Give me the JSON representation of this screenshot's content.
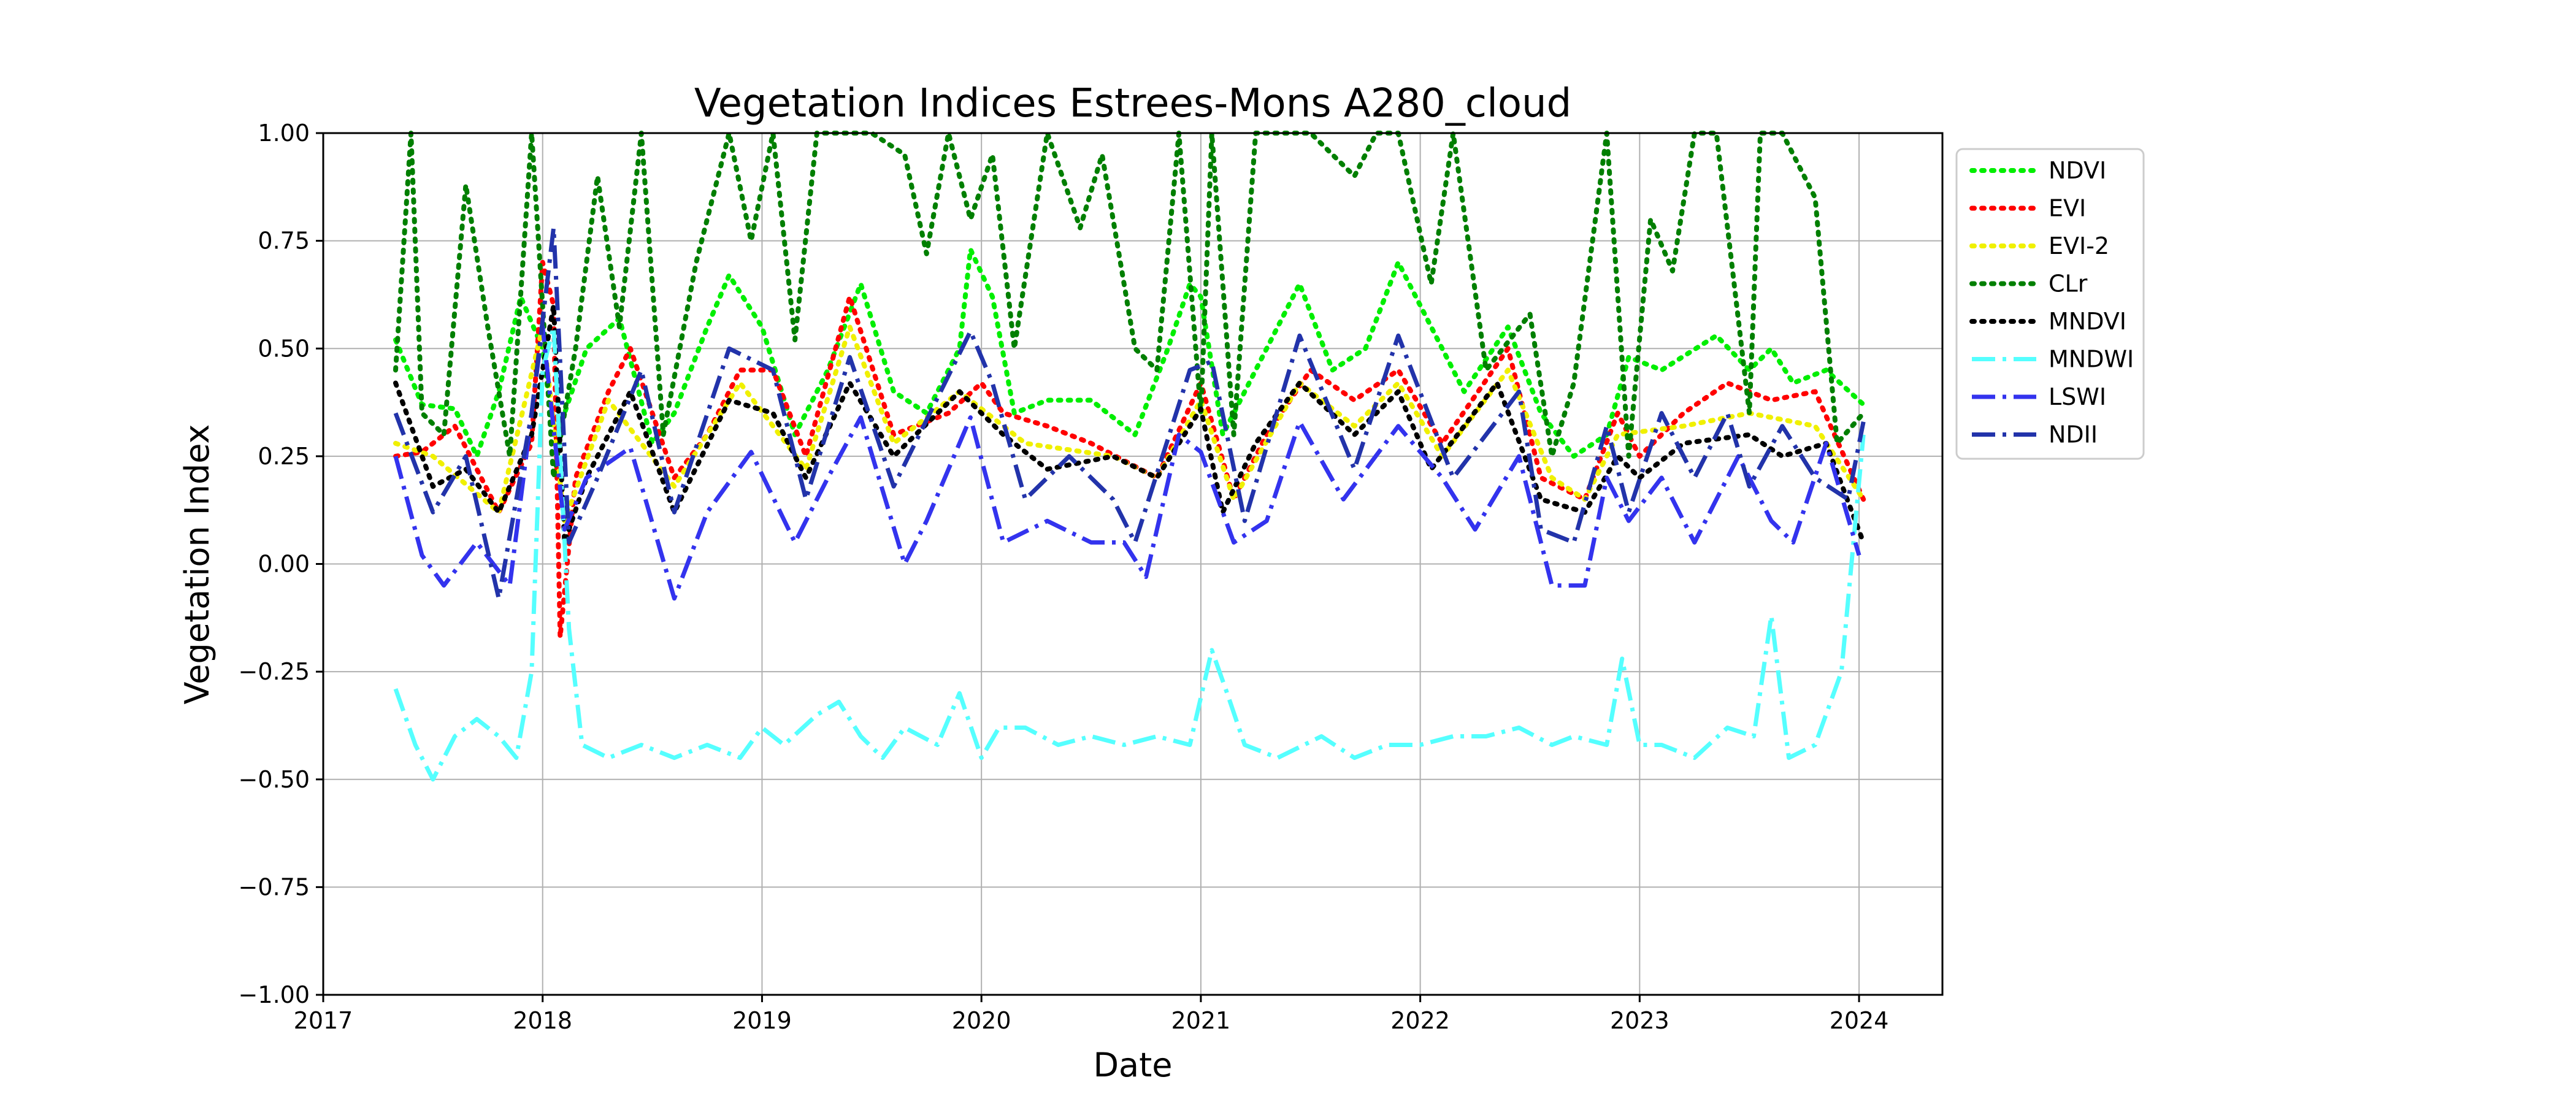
{
  "chart_data": {
    "type": "line",
    "title": "Vegetation Indices Estrees-Mons A280_cloud",
    "xlabel": "Date",
    "ylabel": "Vegetation Index",
    "xlim": [
      2017.0,
      2024.38
    ],
    "ylim": [
      -1.0,
      1.0
    ],
    "xticks": [
      2017,
      2018,
      2019,
      2020,
      2021,
      2022,
      2023,
      2024
    ],
    "xtick_labels": [
      "2017",
      "2018",
      "2019",
      "2020",
      "2021",
      "2022",
      "2023",
      "2024"
    ],
    "yticks": [
      -1.0,
      -0.75,
      -0.5,
      -0.25,
      0.0,
      0.25,
      0.5,
      0.75,
      1.0
    ],
    "ytick_labels": [
      "−1.00",
      "−0.75",
      "−0.50",
      "−0.25",
      "0.00",
      "0.25",
      "0.50",
      "0.75",
      "1.00"
    ],
    "grid": true,
    "legend_position": "outside-top-right",
    "series": [
      {
        "name": "NDVI",
        "color": "#00ee00",
        "style": "dotted",
        "x": [
          2017.33,
          2017.45,
          2017.6,
          2017.7,
          2017.8,
          2017.9,
          2018.0,
          2018.05,
          2018.1,
          2018.2,
          2018.35,
          2018.5,
          2018.6,
          2018.75,
          2018.85,
          2019.0,
          2019.15,
          2019.3,
          2019.45,
          2019.6,
          2019.75,
          2019.9,
          2019.95,
          2020.05,
          2020.15,
          2020.3,
          2020.5,
          2020.7,
          2020.85,
          2020.95,
          2021.0,
          2021.1,
          2021.25,
          2021.45,
          2021.6,
          2021.75,
          2021.9,
          2022.05,
          2022.2,
          2022.4,
          2022.55,
          2022.7,
          2022.85,
          2022.95,
          2023.1,
          2023.35,
          2023.5,
          2023.6,
          2023.7,
          2023.85,
          2024.02
        ],
        "values": [
          0.52,
          0.37,
          0.36,
          0.25,
          0.4,
          0.62,
          0.5,
          0.3,
          0.35,
          0.5,
          0.57,
          0.28,
          0.35,
          0.55,
          0.67,
          0.55,
          0.3,
          0.45,
          0.65,
          0.4,
          0.35,
          0.5,
          0.73,
          0.62,
          0.35,
          0.38,
          0.38,
          0.3,
          0.5,
          0.65,
          0.62,
          0.3,
          0.45,
          0.65,
          0.45,
          0.5,
          0.7,
          0.55,
          0.4,
          0.55,
          0.35,
          0.25,
          0.3,
          0.48,
          0.45,
          0.53,
          0.45,
          0.5,
          0.42,
          0.45,
          0.37
        ]
      },
      {
        "name": "EVI",
        "color": "#ff0000",
        "style": "dotted",
        "x": [
          2017.33,
          2017.45,
          2017.6,
          2017.8,
          2017.95,
          2018.0,
          2018.05,
          2018.08,
          2018.15,
          2018.3,
          2018.4,
          2018.6,
          2018.75,
          2018.9,
          2019.05,
          2019.2,
          2019.4,
          2019.6,
          2019.85,
          2020.0,
          2020.1,
          2020.3,
          2020.5,
          2020.8,
          2021.0,
          2021.15,
          2021.3,
          2021.5,
          2021.7,
          2021.9,
          2022.1,
          2022.4,
          2022.55,
          2022.75,
          2022.9,
          2023.0,
          2023.2,
          2023.4,
          2023.6,
          2023.8,
          2024.02
        ],
        "values": [
          0.25,
          0.26,
          0.32,
          0.12,
          0.28,
          0.7,
          0.6,
          -0.17,
          0.2,
          0.4,
          0.5,
          0.2,
          0.3,
          0.45,
          0.45,
          0.25,
          0.62,
          0.3,
          0.35,
          0.42,
          0.35,
          0.32,
          0.28,
          0.2,
          0.42,
          0.15,
          0.3,
          0.45,
          0.38,
          0.45,
          0.28,
          0.5,
          0.2,
          0.15,
          0.35,
          0.25,
          0.35,
          0.42,
          0.38,
          0.4,
          0.15
        ]
      },
      {
        "name": "EVI-2",
        "color": "#f0f000",
        "style": "dotted",
        "x": [
          2017.33,
          2017.5,
          2017.8,
          2018.0,
          2018.1,
          2018.3,
          2018.6,
          2018.9,
          2019.2,
          2019.4,
          2019.6,
          2019.9,
          2020.2,
          2020.6,
          2020.8,
          2021.0,
          2021.15,
          2021.45,
          2021.7,
          2021.9,
          2022.1,
          2022.4,
          2022.6,
          2022.75,
          2022.9,
          2023.2,
          2023.5,
          2023.8,
          2024.02
        ],
        "values": [
          0.28,
          0.25,
          0.12,
          0.55,
          0.1,
          0.38,
          0.18,
          0.42,
          0.22,
          0.55,
          0.28,
          0.4,
          0.28,
          0.25,
          0.2,
          0.38,
          0.15,
          0.42,
          0.32,
          0.42,
          0.25,
          0.45,
          0.2,
          0.15,
          0.3,
          0.32,
          0.35,
          0.32,
          0.15
        ]
      },
      {
        "name": "CLr",
        "color": "#007f00",
        "style": "dotted",
        "x": [
          2017.33,
          2017.4,
          2017.45,
          2017.55,
          2017.65,
          2017.75,
          2017.85,
          2017.95,
          2018.05,
          2018.15,
          2018.25,
          2018.35,
          2018.45,
          2018.55,
          2018.7,
          2018.85,
          2018.95,
          2019.05,
          2019.15,
          2019.25,
          2019.35,
          2019.5,
          2019.65,
          2019.75,
          2019.85,
          2019.95,
          2020.05,
          2020.15,
          2020.3,
          2020.45,
          2020.55,
          2020.7,
          2020.8,
          2020.9,
          2021.0,
          2021.05,
          2021.15,
          2021.25,
          2021.35,
          2021.5,
          2021.7,
          2021.8,
          2021.9,
          2022.05,
          2022.15,
          2022.3,
          2022.5,
          2022.6,
          2022.7,
          2022.85,
          2022.95,
          2023.05,
          2023.15,
          2023.25,
          2023.35,
          2023.5,
          2023.55,
          2023.65,
          2023.8,
          2023.9,
          2024.02
        ],
        "values": [
          0.45,
          1.0,
          0.35,
          0.3,
          0.88,
          0.55,
          0.25,
          1.0,
          0.2,
          0.5,
          0.9,
          0.55,
          1.0,
          0.3,
          0.7,
          1.0,
          0.75,
          1.0,
          0.52,
          1.0,
          1.0,
          1.0,
          0.95,
          0.72,
          1.0,
          0.8,
          0.95,
          0.5,
          1.0,
          0.78,
          0.95,
          0.5,
          0.45,
          1.0,
          0.35,
          1.0,
          0.3,
          1.0,
          1.0,
          1.0,
          0.9,
          1.0,
          1.0,
          0.65,
          1.0,
          0.45,
          0.58,
          0.25,
          0.42,
          1.0,
          0.25,
          0.8,
          0.68,
          1.0,
          1.0,
          0.35,
          1.0,
          1.0,
          0.85,
          0.28,
          0.35
        ]
      },
      {
        "name": "MNDVI",
        "color": "#000000",
        "style": "dotted",
        "x": [
          2017.33,
          2017.5,
          2017.65,
          2017.8,
          2017.95,
          2018.05,
          2018.1,
          2018.2,
          2018.4,
          2018.6,
          2018.85,
          2019.05,
          2019.2,
          2019.4,
          2019.6,
          2019.9,
          2020.1,
          2020.3,
          2020.6,
          2020.8,
          2021.0,
          2021.1,
          2021.25,
          2021.45,
          2021.7,
          2021.9,
          2022.05,
          2022.35,
          2022.55,
          2022.75,
          2022.9,
          2023.0,
          2023.2,
          2023.5,
          2023.65,
          2023.85,
          2024.02
        ],
        "values": [
          0.42,
          0.18,
          0.22,
          0.12,
          0.3,
          0.6,
          0.05,
          0.2,
          0.4,
          0.12,
          0.38,
          0.35,
          0.2,
          0.42,
          0.25,
          0.4,
          0.3,
          0.22,
          0.25,
          0.2,
          0.36,
          0.12,
          0.28,
          0.42,
          0.3,
          0.4,
          0.22,
          0.42,
          0.15,
          0.12,
          0.25,
          0.2,
          0.28,
          0.3,
          0.25,
          0.28,
          0.05
        ]
      },
      {
        "name": "MNDWI",
        "color": "#55ffff",
        "style": "dashdot",
        "x": [
          2017.33,
          2017.42,
          2017.5,
          2017.6,
          2017.7,
          2017.8,
          2017.88,
          2017.95,
          2018.0,
          2018.05,
          2018.12,
          2018.18,
          2018.3,
          2018.45,
          2018.6,
          2018.75,
          2018.9,
          2019.0,
          2019.1,
          2019.25,
          2019.35,
          2019.45,
          2019.55,
          2019.65,
          2019.8,
          2019.9,
          2020.0,
          2020.08,
          2020.2,
          2020.35,
          2020.5,
          2020.65,
          2020.8,
          2020.95,
          2021.05,
          2021.12,
          2021.2,
          2021.35,
          2021.55,
          2021.7,
          2021.85,
          2022.0,
          2022.15,
          2022.3,
          2022.45,
          2022.6,
          2022.7,
          2022.85,
          2022.92,
          2023.0,
          2023.1,
          2023.25,
          2023.4,
          2023.52,
          2023.6,
          2023.68,
          2023.8,
          2023.92,
          2024.02
        ],
        "values": [
          -0.29,
          -0.42,
          -0.5,
          -0.4,
          -0.36,
          -0.4,
          -0.45,
          -0.25,
          0.45,
          0.55,
          -0.15,
          -0.42,
          -0.45,
          -0.42,
          -0.45,
          -0.42,
          -0.45,
          -0.38,
          -0.42,
          -0.35,
          -0.32,
          -0.4,
          -0.45,
          -0.38,
          -0.42,
          -0.3,
          -0.45,
          -0.38,
          -0.38,
          -0.42,
          -0.4,
          -0.42,
          -0.4,
          -0.42,
          -0.2,
          -0.3,
          -0.42,
          -0.45,
          -0.4,
          -0.45,
          -0.42,
          -0.42,
          -0.4,
          -0.4,
          -0.38,
          -0.42,
          -0.4,
          -0.42,
          -0.22,
          -0.42,
          -0.42,
          -0.45,
          -0.38,
          -0.4,
          -0.12,
          -0.45,
          -0.42,
          -0.25,
          0.3
        ]
      },
      {
        "name": "LSWI",
        "color": "#3333ee",
        "style": "dashdot",
        "x": [
          2017.33,
          2017.45,
          2017.55,
          2017.7,
          2017.85,
          2018.0,
          2018.1,
          2018.2,
          2018.4,
          2018.6,
          2018.75,
          2018.95,
          2019.15,
          2019.3,
          2019.45,
          2019.65,
          2019.75,
          2019.95,
          2020.1,
          2020.3,
          2020.5,
          2020.65,
          2020.75,
          2020.9,
          2021.0,
          2021.15,
          2021.3,
          2021.45,
          2021.65,
          2021.9,
          2022.1,
          2022.25,
          2022.45,
          2022.6,
          2022.75,
          2022.85,
          2022.95,
          2023.1,
          2023.25,
          2023.45,
          2023.6,
          2023.7,
          2023.85,
          2024.0
        ],
        "values": [
          0.25,
          0.02,
          -0.05,
          0.05,
          -0.05,
          0.55,
          0.08,
          0.2,
          0.27,
          -0.08,
          0.12,
          0.26,
          0.05,
          0.2,
          0.34,
          0.0,
          0.1,
          0.34,
          0.05,
          0.1,
          0.05,
          0.05,
          -0.03,
          0.3,
          0.26,
          0.05,
          0.1,
          0.33,
          0.15,
          0.32,
          0.2,
          0.08,
          0.25,
          -0.05,
          -0.05,
          0.2,
          0.1,
          0.2,
          0.05,
          0.25,
          0.1,
          0.05,
          0.28,
          0.02
        ]
      },
      {
        "name": "NDII",
        "color": "#2233aa",
        "style": "dashdot",
        "x": [
          2017.33,
          2017.5,
          2017.65,
          2017.8,
          2017.95,
          2018.05,
          2018.12,
          2018.25,
          2018.45,
          2018.6,
          2018.85,
          2019.05,
          2019.2,
          2019.4,
          2019.6,
          2019.95,
          2020.05,
          2020.2,
          2020.4,
          2020.6,
          2020.7,
          2020.95,
          2021.05,
          2021.2,
          2021.45,
          2021.7,
          2021.9,
          2022.15,
          2022.3,
          2022.45,
          2022.55,
          2022.7,
          2022.85,
          2022.95,
          2023.1,
          2023.25,
          2023.4,
          2023.5,
          2023.65,
          2023.8,
          2023.95,
          2024.02
        ],
        "values": [
          0.35,
          0.12,
          0.25,
          -0.08,
          0.35,
          0.78,
          0.05,
          0.2,
          0.45,
          0.12,
          0.5,
          0.45,
          0.15,
          0.48,
          0.18,
          0.54,
          0.42,
          0.15,
          0.25,
          0.15,
          0.05,
          0.45,
          0.47,
          0.1,
          0.53,
          0.22,
          0.53,
          0.2,
          0.3,
          0.4,
          0.08,
          0.05,
          0.32,
          0.12,
          0.35,
          0.2,
          0.35,
          0.18,
          0.32,
          0.2,
          0.15,
          0.33
        ]
      }
    ]
  }
}
